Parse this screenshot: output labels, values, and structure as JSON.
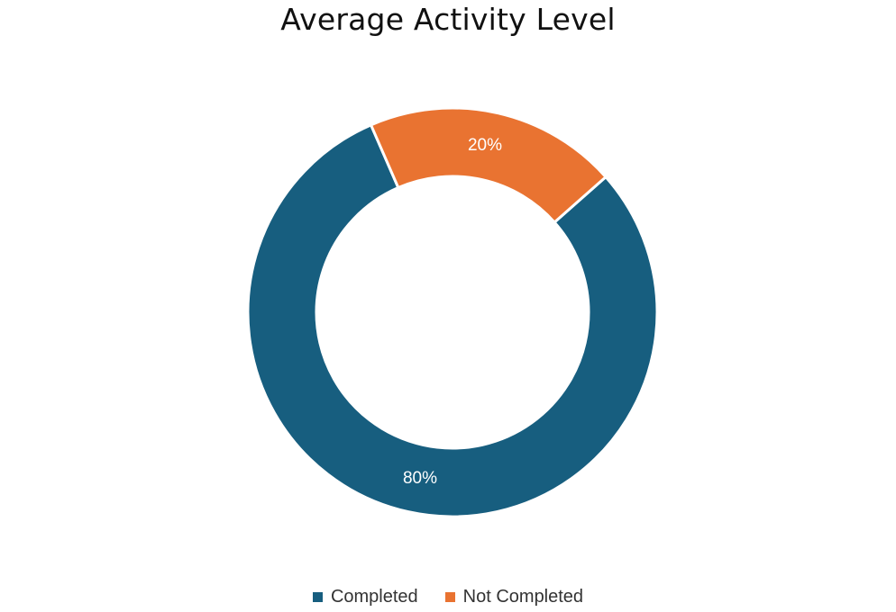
{
  "chart_data": {
    "type": "pie",
    "variant": "donut",
    "title": "Average Activity Level",
    "categories": [
      "Completed",
      "Not Completed"
    ],
    "values": [
      80,
      20
    ],
    "data_labels": [
      "80%",
      "20%"
    ],
    "colors": [
      "#175E7F",
      "#E97331"
    ],
    "legend_position": "bottom"
  }
}
